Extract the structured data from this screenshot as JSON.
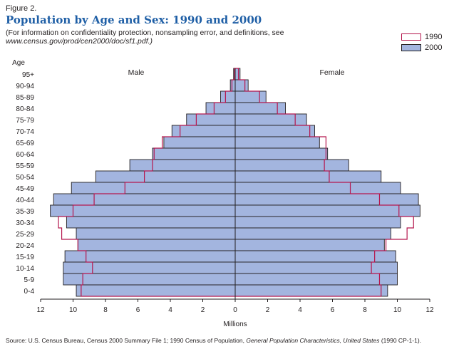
{
  "figure_label": "Figure 2.",
  "title": "Population by Age and Sex:  1990 and 2000",
  "subtitle_line1": "(For information on confidentiality protection, nonsampling error, and definitions, see",
  "subtitle_line2": "www.census.gov/prod/cen2000/doc/sf1.pdf.)",
  "source": {
    "prefix": "Source:  U.S. Census Bureau, Census 2000 Summary File 1; 1990 Census of Population, ",
    "publication": "General Population Characteristics, United States",
    "suffix": " (1990 CP-1-1)."
  },
  "colors": {
    "bar_2000": "#a3b5df",
    "outline_1990": "#b5174e",
    "axis": "#231f20"
  },
  "chart_data": {
    "type": "bar",
    "orientation": "horizontal",
    "style": "population-pyramid",
    "ylabel": "Age",
    "xlabel": "Millions",
    "male_label": "Male",
    "female_label": "Female",
    "xlim": [
      -12,
      12
    ],
    "x_ticks": [
      "12",
      "10",
      "8",
      "6",
      "4",
      "2",
      "0",
      "2",
      "4",
      "6",
      "8",
      "10",
      "12"
    ],
    "categories": [
      "95+",
      "90-94",
      "85-89",
      "80-84",
      "75-79",
      "70-74",
      "65-69",
      "60-64",
      "55-59",
      "50-54",
      "45-49",
      "40-44",
      "35-39",
      "30-34",
      "25-29",
      "20-24",
      "15-19",
      "10-14",
      "5-9",
      "0-4"
    ],
    "series": [
      {
        "name": "1990",
        "style": "outline",
        "male": [
          0.05,
          0.2,
          0.6,
          1.3,
          2.4,
          3.4,
          4.5,
          5.0,
          5.1,
          5.6,
          6.8,
          8.7,
          10.0,
          10.9,
          10.7,
          9.7,
          9.2,
          8.8,
          9.4,
          9.5
        ],
        "female": [
          0.2,
          0.6,
          1.5,
          2.6,
          3.7,
          4.6,
          5.6,
          5.6,
          5.5,
          5.8,
          7.1,
          8.9,
          10.1,
          11.0,
          10.6,
          9.3,
          8.6,
          8.4,
          8.9,
          9.0
        ]
      },
      {
        "name": "2000",
        "style": "filled",
        "male": [
          0.1,
          0.3,
          0.9,
          1.8,
          3.0,
          3.9,
          4.4,
          5.1,
          6.5,
          8.6,
          10.1,
          11.2,
          11.4,
          10.4,
          9.8,
          9.7,
          10.5,
          10.6,
          10.6,
          9.8
        ],
        "female": [
          0.3,
          0.8,
          1.9,
          3.1,
          4.4,
          4.9,
          5.2,
          5.7,
          7.0,
          9.0,
          10.2,
          11.3,
          11.4,
          10.2,
          9.6,
          9.2,
          9.9,
          10.0,
          10.0,
          9.4
        ]
      }
    ],
    "legend": [
      "1990",
      "2000"
    ],
    "legend_position": "top-right",
    "grid": false
  }
}
